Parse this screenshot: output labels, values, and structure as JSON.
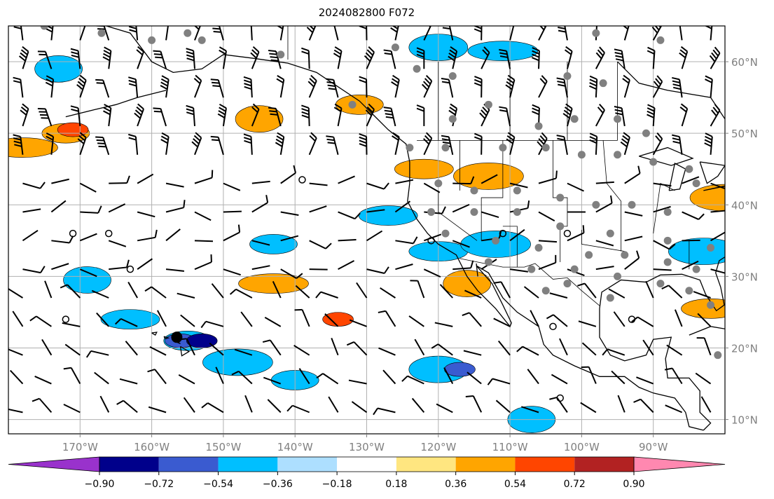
{
  "title": "2024082800 F072",
  "map": {
    "lon_range": [
      -180,
      -80
    ],
    "lat_range": [
      8,
      65
    ],
    "lat_ticks": [
      {
        "value": 10,
        "label": "10°N"
      },
      {
        "value": 20,
        "label": "20°N"
      },
      {
        "value": 30,
        "label": "30°N"
      },
      {
        "value": 40,
        "label": "40°N"
      },
      {
        "value": 50,
        "label": "50°N"
      },
      {
        "value": 60,
        "label": "60°N"
      }
    ],
    "lon_ticks": [
      {
        "value": -170,
        "label": "170°W"
      },
      {
        "value": -160,
        "label": "160°W"
      },
      {
        "value": -150,
        "label": "150°W"
      },
      {
        "value": -140,
        "label": "140°W"
      },
      {
        "value": -130,
        "label": "130°W"
      },
      {
        "value": -120,
        "label": "120°W"
      },
      {
        "value": -110,
        "label": "110°W"
      },
      {
        "value": -100,
        "label": "100°W"
      },
      {
        "value": -90,
        "label": "90°W"
      }
    ],
    "gridlines": true,
    "tick_color": "#808080"
  },
  "colorbar": {
    "bounds": [
      -0.9,
      -0.72,
      -0.54,
      -0.36,
      -0.18,
      0.18,
      0.36,
      0.54,
      0.72,
      0.9
    ],
    "colors": [
      "#9932CC",
      "#00008B",
      "#3A5BD0",
      "#00BFFF",
      "#ADDFFF",
      "#FFFFFF",
      "#FFE680",
      "#FFA500",
      "#FF4500",
      "#B22222",
      "#FF88B0"
    ],
    "tick_labels": [
      "−0.90",
      "−0.72",
      "−0.54",
      "−0.36",
      "−0.18",
      "0.18",
      "0.36",
      "0.54",
      "0.72",
      "0.90"
    ],
    "extend": "both"
  },
  "fields": {
    "shaded_anomalies": [
      {
        "lon": -172,
        "lat": 50,
        "level": 0.45
      },
      {
        "lon": -171,
        "lat": 50.5,
        "level": 0.65
      },
      {
        "lon": -178,
        "lat": 48,
        "level": 0.4
      },
      {
        "lon": -145,
        "lat": 52,
        "level": 0.4
      },
      {
        "lon": -122,
        "lat": 45,
        "level": 0.45
      },
      {
        "lon": -113,
        "lat": 44,
        "level": 0.4
      },
      {
        "lon": -131,
        "lat": 54,
        "level": 0.4
      },
      {
        "lon": -134,
        "lat": 24,
        "level": 0.55
      },
      {
        "lon": -143,
        "lat": 29,
        "level": 0.4
      },
      {
        "lon": -116,
        "lat": 29,
        "level": 0.4
      },
      {
        "lon": -82,
        "lat": 25.5,
        "level": 0.4
      },
      {
        "lon": -80,
        "lat": 41,
        "level": 0.4
      },
      {
        "lon": -155,
        "lat": 21,
        "level": -0.45
      },
      {
        "lon": -156,
        "lat": 21,
        "level": -0.6
      },
      {
        "lon": -153,
        "lat": 21,
        "level": -0.75
      },
      {
        "lon": -169,
        "lat": 29.5,
        "level": -0.45
      },
      {
        "lon": -163,
        "lat": 24,
        "level": -0.4
      },
      {
        "lon": -148,
        "lat": 18,
        "level": -0.4
      },
      {
        "lon": -140,
        "lat": 15.5,
        "level": -0.4
      },
      {
        "lon": -120,
        "lat": 17,
        "level": -0.45
      },
      {
        "lon": -117,
        "lat": 17,
        "level": -0.6
      },
      {
        "lon": -107,
        "lat": 10,
        "level": -0.45
      },
      {
        "lon": -120,
        "lat": 33.5,
        "level": -0.45
      },
      {
        "lon": -112,
        "lat": 34.5,
        "level": -0.4
      },
      {
        "lon": -143,
        "lat": 34.5,
        "level": -0.4
      },
      {
        "lon": -120,
        "lat": 62,
        "level": -0.4
      },
      {
        "lon": -111,
        "lat": 61.5,
        "level": -0.45
      },
      {
        "lon": -173,
        "lat": 59,
        "level": -0.4
      },
      {
        "lon": -127,
        "lat": 38.5,
        "level": -0.4
      },
      {
        "lon": -83,
        "lat": 33.5,
        "level": -0.4
      }
    ],
    "grey_markers": [
      [
        -175,
        65
      ],
      [
        -167,
        64
      ],
      [
        -160,
        63
      ],
      [
        -155,
        64
      ],
      [
        -153,
        63
      ],
      [
        -142,
        61
      ],
      [
        -126,
        62
      ],
      [
        -123,
        59
      ],
      [
        -118,
        58
      ],
      [
        -102,
        58
      ],
      [
        -97,
        57
      ],
      [
        -98,
        64
      ],
      [
        -89,
        63
      ],
      [
        -132,
        54
      ],
      [
        -118,
        52
      ],
      [
        -113,
        54
      ],
      [
        -106,
        51
      ],
      [
        -101,
        52
      ],
      [
        -95,
        52
      ],
      [
        -91,
        50
      ],
      [
        -124,
        48
      ],
      [
        -119,
        48
      ],
      [
        -111,
        48
      ],
      [
        -105,
        48
      ],
      [
        -100,
        47
      ],
      [
        -95,
        47
      ],
      [
        -90,
        46
      ],
      [
        -85,
        45
      ],
      [
        -84,
        43
      ],
      [
        -120,
        43
      ],
      [
        -115,
        42
      ],
      [
        -109,
        42
      ],
      [
        -103,
        41
      ],
      [
        -98,
        40
      ],
      [
        -93,
        40
      ],
      [
        -88,
        39
      ],
      [
        -121,
        39
      ],
      [
        -115,
        39
      ],
      [
        -109,
        39
      ],
      [
        -103,
        37
      ],
      [
        -96,
        36
      ],
      [
        -88,
        35
      ],
      [
        -82,
        34
      ],
      [
        -119,
        36
      ],
      [
        -112,
        35
      ],
      [
        -106,
        34
      ],
      [
        -99,
        33
      ],
      [
        -94,
        33
      ],
      [
        -88,
        32
      ],
      [
        -84,
        31
      ],
      [
        -113,
        32
      ],
      [
        -107,
        31
      ],
      [
        -101,
        31
      ],
      [
        -95,
        30
      ],
      [
        -89,
        29
      ],
      [
        -85,
        28
      ],
      [
        -82,
        26
      ],
      [
        -102,
        29
      ],
      [
        -96,
        27
      ],
      [
        -105,
        28
      ],
      [
        -81,
        19
      ]
    ],
    "station_circles": [
      [
        -139,
        43.5
      ],
      [
        -171,
        36
      ],
      [
        -166,
        36
      ],
      [
        -163,
        31
      ],
      [
        -172,
        24
      ],
      [
        -111,
        36
      ],
      [
        -102,
        36
      ],
      [
        -121,
        35
      ],
      [
        -93,
        24
      ],
      [
        -104,
        23
      ],
      [
        -103,
        13
      ]
    ],
    "tropical_marker": {
      "lon": -156.5,
      "lat": 21.5
    },
    "barb_spacing_deg": 4
  }
}
